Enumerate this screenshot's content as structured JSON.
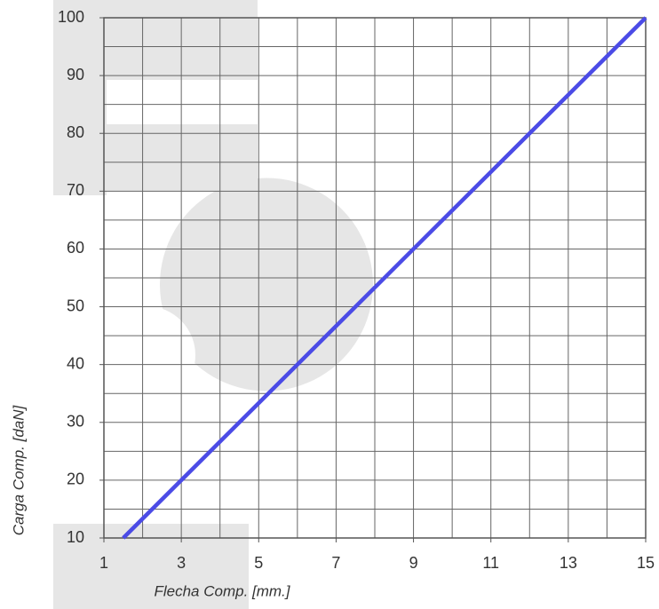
{
  "chart_data": {
    "type": "line",
    "x_label": "Flecha Comp. [mm.]",
    "y_label": "Carga Comp. [daN]",
    "x": [
      1.5,
      3,
      9,
      15
    ],
    "series": [
      {
        "color": "#4b4be6",
        "values": [
          10,
          20,
          60,
          100
        ]
      }
    ],
    "xlim": [
      1,
      15
    ],
    "ylim": [
      10,
      100
    ],
    "xticks": [
      1,
      3,
      5,
      7,
      9,
      11,
      13,
      15
    ],
    "yticks": [
      10,
      20,
      30,
      40,
      50,
      60,
      70,
      80,
      90,
      100
    ],
    "x_grid": [
      1,
      2,
      3,
      4,
      5,
      6,
      7,
      8,
      9,
      10,
      11,
      12,
      13,
      14,
      15
    ],
    "y_grid": [
      10,
      15,
      20,
      25,
      30,
      35,
      40,
      45,
      50,
      55,
      60,
      65,
      70,
      75,
      80,
      85,
      90,
      95,
      100
    ],
    "grid": true
  }
}
